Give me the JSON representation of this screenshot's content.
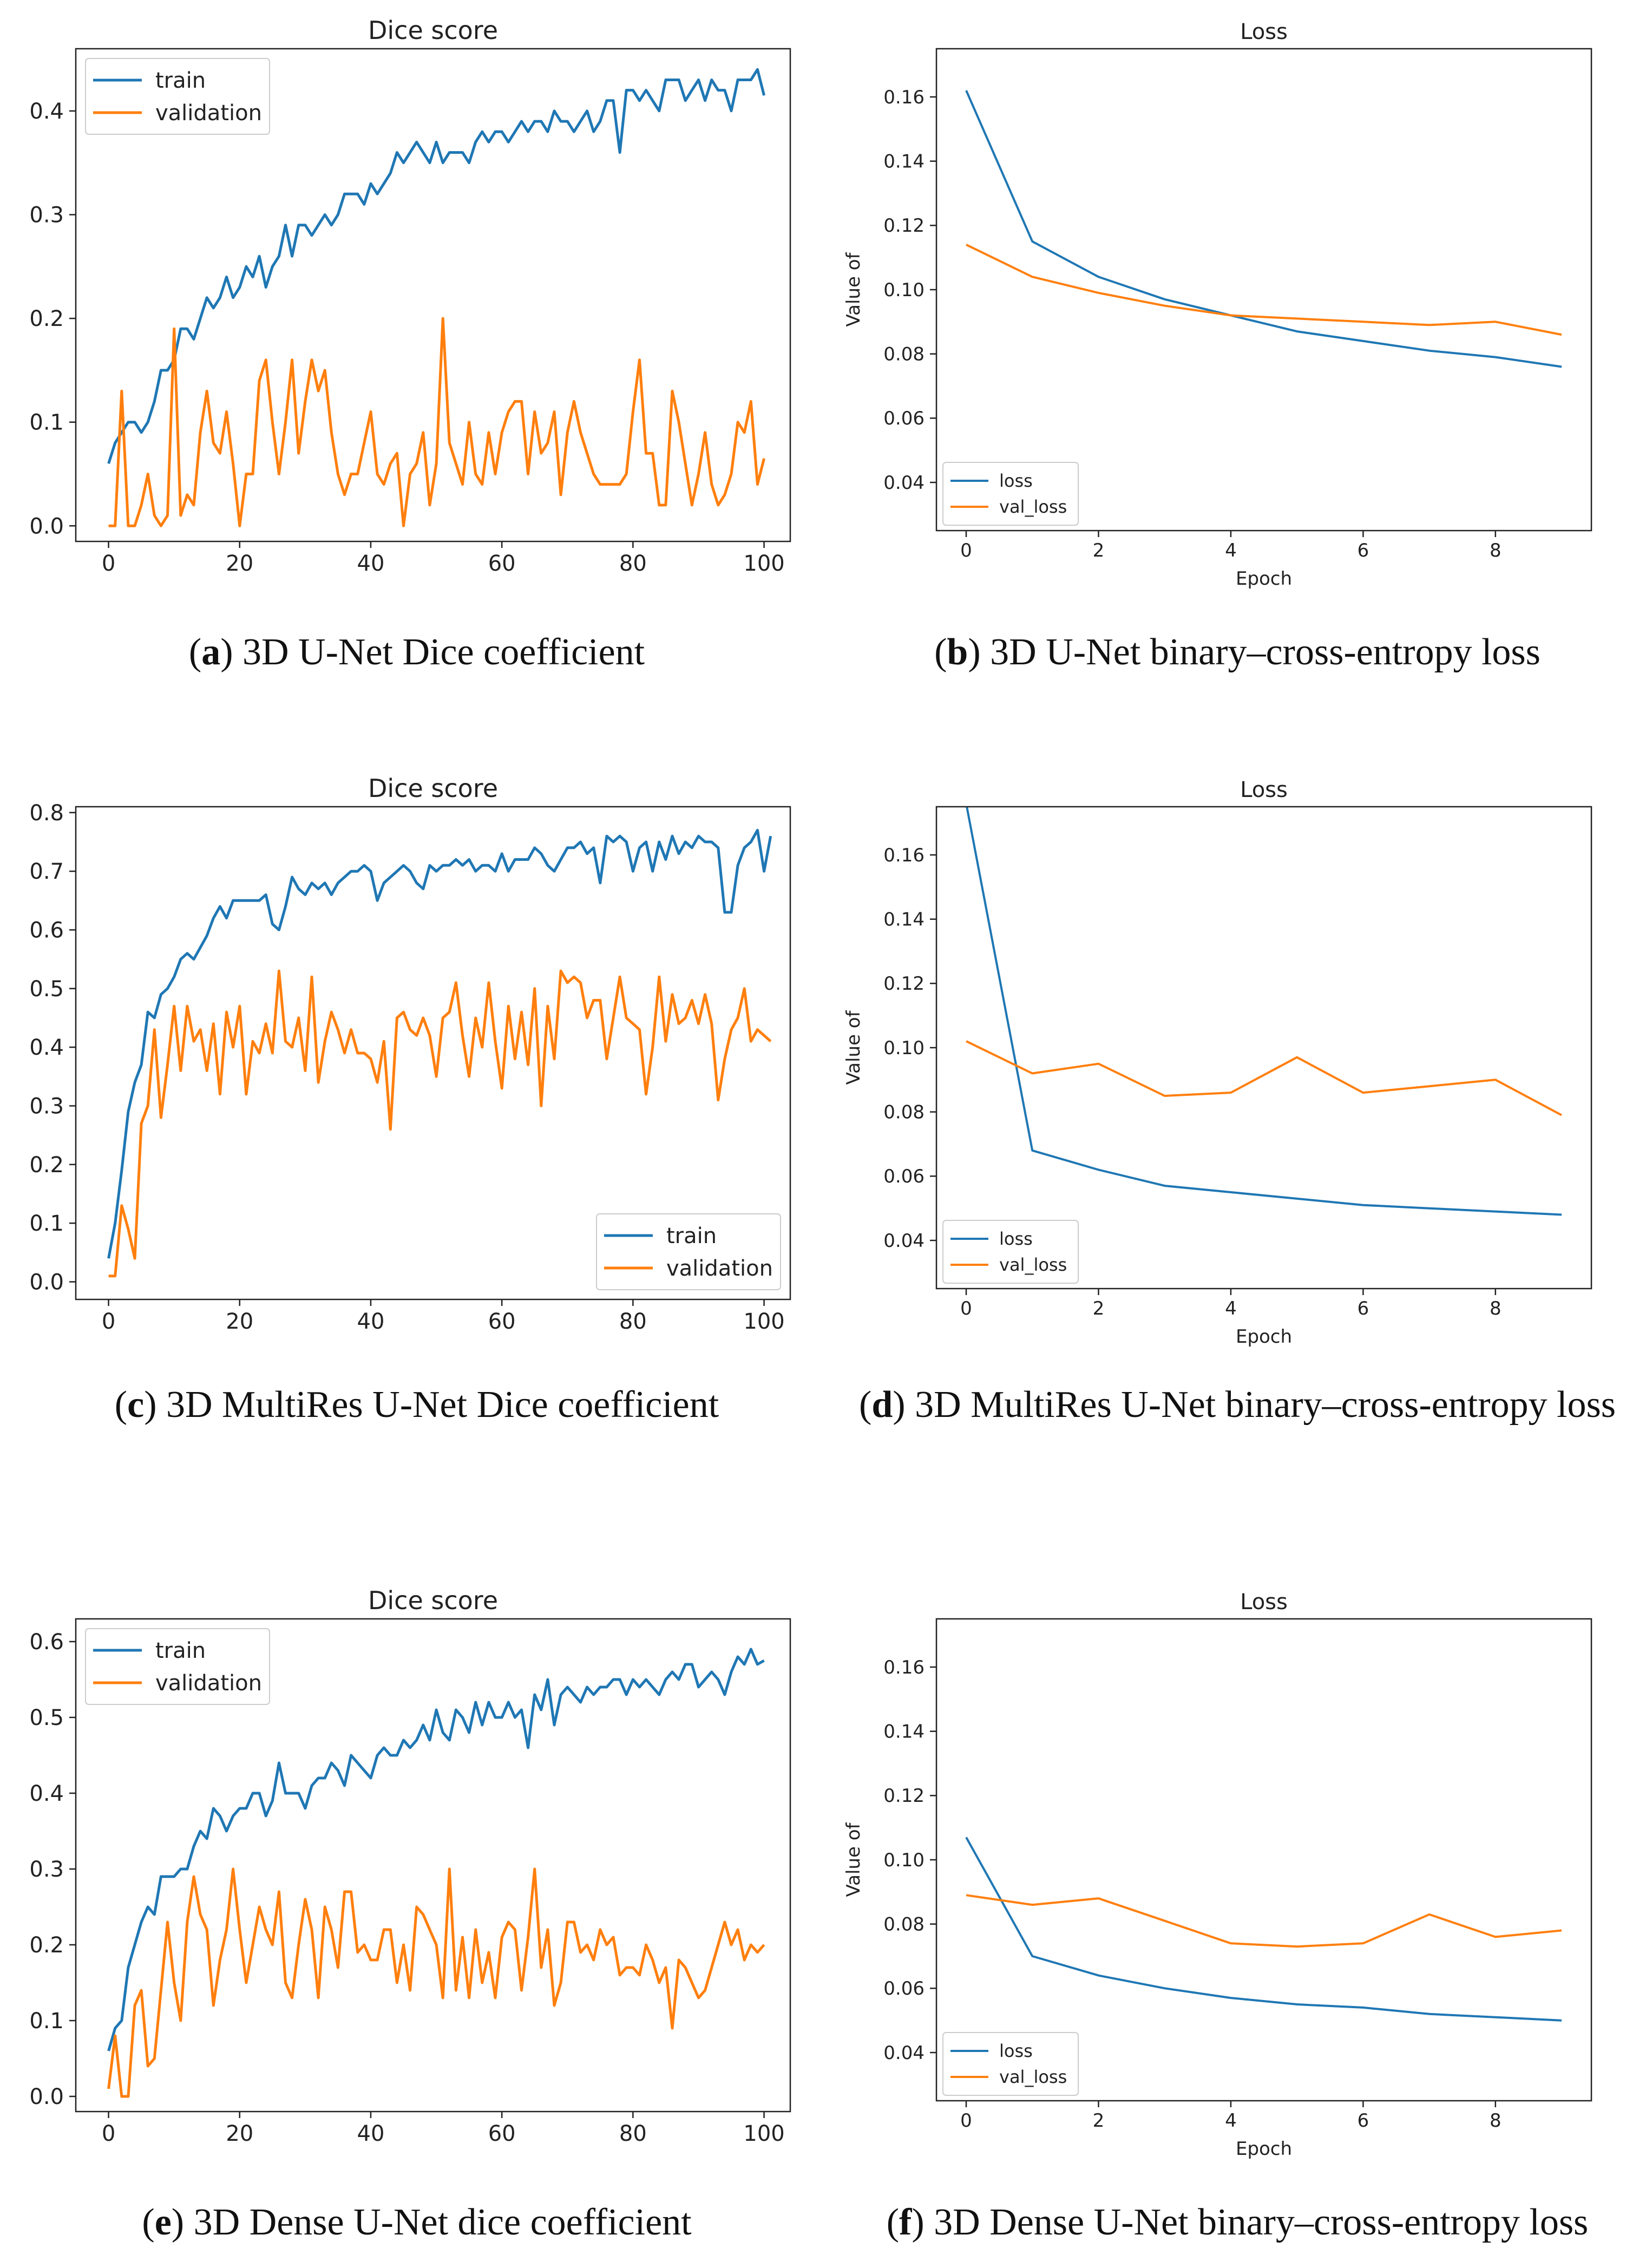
{
  "colors": {
    "blue": "#1f77b4",
    "orange": "#ff7f0e"
  },
  "captions": [
    {
      "letter": "a",
      "text": "3D U-Net Dice coefficient"
    },
    {
      "letter": "b",
      "text": "3D U-Net binary–cross-entropy loss"
    },
    {
      "letter": "c",
      "text": "3D MultiRes U-Net Dice coefficient"
    },
    {
      "letter": "d",
      "text": "3D MultiRes U-Net binary–cross-entropy loss"
    },
    {
      "letter": "e",
      "text": "3D Dense U-Net dice coefficient"
    },
    {
      "letter": "f",
      "text": "3D Dense U-Net binary–cross-entropy loss"
    }
  ],
  "chart_data": [
    {
      "type": "line",
      "title": "Dice score",
      "xlabel": "",
      "ylabel": "",
      "xlim": [
        -5,
        104
      ],
      "ylim": [
        -0.015,
        0.46
      ],
      "xticks": [
        0,
        20,
        40,
        60,
        80,
        100
      ],
      "yticks": [
        0.0,
        0.1,
        0.2,
        0.3,
        0.4
      ],
      "legend_position": "upper-left",
      "series": [
        {
          "name": "train",
          "color": "#1f77b4",
          "values": [
            0.06,
            0.08,
            0.09,
            0.1,
            0.1,
            0.09,
            0.1,
            0.12,
            0.15,
            0.15,
            0.16,
            0.19,
            0.19,
            0.18,
            0.2,
            0.22,
            0.21,
            0.22,
            0.24,
            0.22,
            0.23,
            0.25,
            0.24,
            0.26,
            0.23,
            0.25,
            0.26,
            0.29,
            0.26,
            0.29,
            0.29,
            0.28,
            0.29,
            0.3,
            0.29,
            0.3,
            0.32,
            0.32,
            0.32,
            0.31,
            0.33,
            0.32,
            0.33,
            0.34,
            0.36,
            0.35,
            0.36,
            0.37,
            0.36,
            0.35,
            0.37,
            0.35,
            0.36,
            0.36,
            0.36,
            0.35,
            0.37,
            0.38,
            0.37,
            0.38,
            0.38,
            0.37,
            0.38,
            0.39,
            0.38,
            0.39,
            0.39,
            0.38,
            0.4,
            0.39,
            0.39,
            0.38,
            0.39,
            0.4,
            0.38,
            0.39,
            0.41,
            0.41,
            0.36,
            0.42,
            0.42,
            0.41,
            0.42,
            0.41,
            0.4,
            0.43,
            0.43,
            0.43,
            0.41,
            0.42,
            0.43,
            0.41,
            0.43,
            0.42,
            0.42,
            0.4,
            0.43,
            0.43,
            0.43,
            0.44,
            0.415
          ]
        },
        {
          "name": "validation",
          "color": "#ff7f0e",
          "values": [
            0.0,
            0.0,
            0.13,
            0.0,
            0.0,
            0.02,
            0.05,
            0.01,
            0.0,
            0.01,
            0.19,
            0.01,
            0.03,
            0.02,
            0.09,
            0.13,
            0.08,
            0.07,
            0.11,
            0.06,
            0.0,
            0.05,
            0.05,
            0.14,
            0.16,
            0.1,
            0.05,
            0.1,
            0.16,
            0.07,
            0.12,
            0.16,
            0.13,
            0.15,
            0.09,
            0.05,
            0.03,
            0.05,
            0.05,
            0.08,
            0.11,
            0.05,
            0.04,
            0.06,
            0.07,
            0.0,
            0.05,
            0.06,
            0.09,
            0.02,
            0.06,
            0.2,
            0.08,
            0.06,
            0.04,
            0.1,
            0.05,
            0.04,
            0.09,
            0.05,
            0.09,
            0.11,
            0.12,
            0.12,
            0.05,
            0.11,
            0.07,
            0.08,
            0.11,
            0.03,
            0.09,
            0.12,
            0.09,
            0.07,
            0.05,
            0.04,
            0.04,
            0.04,
            0.04,
            0.05,
            0.11,
            0.16,
            0.07,
            0.07,
            0.02,
            0.02,
            0.13,
            0.1,
            0.06,
            0.02,
            0.05,
            0.09,
            0.04,
            0.02,
            0.03,
            0.05,
            0.1,
            0.09,
            0.12,
            0.04,
            0.065
          ]
        }
      ]
    },
    {
      "type": "line",
      "title": "Loss",
      "xlabel": "Epoch",
      "ylabel": "Value of",
      "xlim": [
        -0.45,
        9.45
      ],
      "ylim": [
        0.025,
        0.175
      ],
      "xticks": [
        0,
        2,
        4,
        6,
        8
      ],
      "yticks": [
        0.04,
        0.06,
        0.08,
        0.1,
        0.12,
        0.14,
        0.16
      ],
      "legend_position": "lower-left",
      "series": [
        {
          "name": "loss",
          "color": "#1f77b4",
          "x": [
            0,
            1,
            2,
            3,
            4,
            5,
            6,
            7,
            8,
            9
          ],
          "values": [
            0.162,
            0.115,
            0.104,
            0.097,
            0.092,
            0.087,
            0.084,
            0.081,
            0.079,
            0.076
          ]
        },
        {
          "name": "val_loss",
          "color": "#ff7f0e",
          "x": [
            0,
            1,
            2,
            3,
            4,
            5,
            6,
            7,
            8,
            9
          ],
          "values": [
            0.114,
            0.104,
            0.099,
            0.095,
            0.092,
            0.091,
            0.09,
            0.089,
            0.09,
            0.086
          ]
        }
      ]
    },
    {
      "type": "line",
      "title": "Dice score",
      "xlabel": "",
      "ylabel": "",
      "xlim": [
        -5,
        104
      ],
      "ylim": [
        -0.03,
        0.81
      ],
      "xticks": [
        0,
        20,
        40,
        60,
        80,
        100
      ],
      "yticks": [
        0.0,
        0.1,
        0.2,
        0.3,
        0.4,
        0.5,
        0.6,
        0.7,
        0.8
      ],
      "legend_position": "lower-right",
      "series": [
        {
          "name": "train",
          "color": "#1f77b4",
          "values": [
            0.04,
            0.1,
            0.19,
            0.29,
            0.34,
            0.37,
            0.46,
            0.45,
            0.49,
            0.5,
            0.52,
            0.55,
            0.56,
            0.55,
            0.57,
            0.59,
            0.62,
            0.64,
            0.62,
            0.65,
            0.65,
            0.65,
            0.65,
            0.65,
            0.66,
            0.61,
            0.6,
            0.64,
            0.69,
            0.67,
            0.66,
            0.68,
            0.67,
            0.68,
            0.66,
            0.68,
            0.69,
            0.7,
            0.7,
            0.71,
            0.7,
            0.65,
            0.68,
            0.69,
            0.7,
            0.71,
            0.7,
            0.68,
            0.67,
            0.71,
            0.7,
            0.71,
            0.71,
            0.72,
            0.71,
            0.72,
            0.7,
            0.71,
            0.71,
            0.7,
            0.73,
            0.7,
            0.72,
            0.72,
            0.72,
            0.74,
            0.73,
            0.71,
            0.7,
            0.72,
            0.74,
            0.74,
            0.75,
            0.73,
            0.74,
            0.68,
            0.76,
            0.75,
            0.76,
            0.75,
            0.7,
            0.74,
            0.75,
            0.7,
            0.75,
            0.72,
            0.76,
            0.73,
            0.75,
            0.74,
            0.76,
            0.75,
            0.75,
            0.74,
            0.63,
            0.63,
            0.71,
            0.74,
            0.75,
            0.77,
            0.7,
            0.76
          ]
        },
        {
          "name": "validation",
          "color": "#ff7f0e",
          "values": [
            0.01,
            0.01,
            0.13,
            0.09,
            0.04,
            0.27,
            0.3,
            0.43,
            0.28,
            0.37,
            0.47,
            0.36,
            0.47,
            0.41,
            0.43,
            0.36,
            0.44,
            0.32,
            0.46,
            0.4,
            0.47,
            0.32,
            0.41,
            0.39,
            0.44,
            0.39,
            0.53,
            0.41,
            0.4,
            0.45,
            0.36,
            0.52,
            0.34,
            0.41,
            0.46,
            0.43,
            0.39,
            0.43,
            0.39,
            0.39,
            0.38,
            0.34,
            0.41,
            0.26,
            0.45,
            0.46,
            0.43,
            0.42,
            0.45,
            0.42,
            0.35,
            0.45,
            0.46,
            0.51,
            0.42,
            0.35,
            0.45,
            0.4,
            0.51,
            0.41,
            0.33,
            0.47,
            0.38,
            0.46,
            0.37,
            0.5,
            0.3,
            0.47,
            0.38,
            0.53,
            0.51,
            0.52,
            0.51,
            0.45,
            0.48,
            0.48,
            0.38,
            0.45,
            0.52,
            0.45,
            0.44,
            0.43,
            0.32,
            0.4,
            0.52,
            0.41,
            0.49,
            0.44,
            0.45,
            0.48,
            0.44,
            0.49,
            0.44,
            0.31,
            0.38,
            0.43,
            0.45,
            0.5,
            0.41,
            0.43,
            0.42,
            0.41
          ]
        }
      ]
    },
    {
      "type": "line",
      "title": "Loss",
      "xlabel": "Epoch",
      "ylabel": "Value of",
      "xlim": [
        -0.45,
        9.45
      ],
      "ylim": [
        0.025,
        0.175
      ],
      "xticks": [
        0,
        2,
        4,
        6,
        8
      ],
      "yticks": [
        0.04,
        0.06,
        0.08,
        0.1,
        0.12,
        0.14,
        0.16
      ],
      "legend_position": "lower-left",
      "series": [
        {
          "name": "loss",
          "color": "#1f77b4",
          "x": [
            0,
            1,
            2,
            3,
            4,
            5,
            6,
            7,
            8,
            9
          ],
          "values": [
            0.176,
            0.068,
            0.062,
            0.057,
            0.055,
            0.053,
            0.051,
            0.05,
            0.049,
            0.048
          ]
        },
        {
          "name": "val_loss",
          "color": "#ff7f0e",
          "x": [
            0,
            1,
            2,
            3,
            4,
            5,
            6,
            7,
            8,
            9
          ],
          "values": [
            0.102,
            0.092,
            0.095,
            0.085,
            0.086,
            0.097,
            0.086,
            0.088,
            0.09,
            0.079
          ]
        }
      ]
    },
    {
      "type": "line",
      "title": "Dice score",
      "xlabel": "",
      "ylabel": "",
      "xlim": [
        -5,
        104
      ],
      "ylim": [
        -0.02,
        0.63
      ],
      "xticks": [
        0,
        20,
        40,
        60,
        80,
        100
      ],
      "yticks": [
        0.0,
        0.1,
        0.2,
        0.3,
        0.4,
        0.5,
        0.6
      ],
      "legend_position": "upper-left",
      "series": [
        {
          "name": "train",
          "color": "#1f77b4",
          "values": [
            0.06,
            0.09,
            0.1,
            0.17,
            0.2,
            0.23,
            0.25,
            0.24,
            0.29,
            0.29,
            0.29,
            0.3,
            0.3,
            0.33,
            0.35,
            0.34,
            0.38,
            0.37,
            0.35,
            0.37,
            0.38,
            0.38,
            0.4,
            0.4,
            0.37,
            0.39,
            0.44,
            0.4,
            0.4,
            0.4,
            0.38,
            0.41,
            0.42,
            0.42,
            0.44,
            0.43,
            0.41,
            0.45,
            0.44,
            0.43,
            0.42,
            0.45,
            0.46,
            0.45,
            0.45,
            0.47,
            0.46,
            0.47,
            0.49,
            0.47,
            0.51,
            0.48,
            0.47,
            0.51,
            0.5,
            0.48,
            0.52,
            0.49,
            0.52,
            0.5,
            0.5,
            0.52,
            0.5,
            0.51,
            0.46,
            0.53,
            0.51,
            0.55,
            0.49,
            0.53,
            0.54,
            0.53,
            0.52,
            0.54,
            0.53,
            0.54,
            0.54,
            0.55,
            0.55,
            0.53,
            0.55,
            0.54,
            0.55,
            0.54,
            0.53,
            0.55,
            0.56,
            0.55,
            0.57,
            0.57,
            0.54,
            0.55,
            0.56,
            0.55,
            0.53,
            0.56,
            0.58,
            0.57,
            0.59,
            0.57,
            0.575
          ]
        },
        {
          "name": "validation",
          "color": "#ff7f0e",
          "values": [
            0.01,
            0.08,
            0.0,
            0.0,
            0.12,
            0.14,
            0.04,
            0.05,
            0.14,
            0.23,
            0.15,
            0.1,
            0.23,
            0.29,
            0.24,
            0.22,
            0.12,
            0.18,
            0.22,
            0.3,
            0.22,
            0.15,
            0.2,
            0.25,
            0.22,
            0.2,
            0.27,
            0.15,
            0.13,
            0.2,
            0.26,
            0.22,
            0.13,
            0.25,
            0.22,
            0.17,
            0.27,
            0.27,
            0.19,
            0.2,
            0.18,
            0.18,
            0.22,
            0.22,
            0.15,
            0.2,
            0.14,
            0.25,
            0.24,
            0.22,
            0.2,
            0.13,
            0.3,
            0.14,
            0.21,
            0.13,
            0.22,
            0.15,
            0.19,
            0.13,
            0.21,
            0.23,
            0.22,
            0.14,
            0.21,
            0.3,
            0.17,
            0.22,
            0.12,
            0.15,
            0.23,
            0.23,
            0.19,
            0.2,
            0.18,
            0.22,
            0.2,
            0.21,
            0.16,
            0.17,
            0.17,
            0.16,
            0.2,
            0.18,
            0.15,
            0.17,
            0.09,
            0.18,
            0.17,
            0.15,
            0.13,
            0.14,
            0.17,
            0.2,
            0.23,
            0.2,
            0.22,
            0.18,
            0.2,
            0.19,
            0.2
          ]
        }
      ]
    },
    {
      "type": "line",
      "title": "Loss",
      "xlabel": "Epoch",
      "ylabel": "Value of",
      "xlim": [
        -0.45,
        9.45
      ],
      "ylim": [
        0.025,
        0.175
      ],
      "xticks": [
        0,
        2,
        4,
        6,
        8
      ],
      "yticks": [
        0.04,
        0.06,
        0.08,
        0.1,
        0.12,
        0.14,
        0.16
      ],
      "legend_position": "lower-left",
      "series": [
        {
          "name": "loss",
          "color": "#1f77b4",
          "x": [
            0,
            1,
            2,
            3,
            4,
            5,
            6,
            7,
            8,
            9
          ],
          "values": [
            0.107,
            0.07,
            0.064,
            0.06,
            0.057,
            0.055,
            0.054,
            0.052,
            0.051,
            0.05
          ]
        },
        {
          "name": "val_loss",
          "color": "#ff7f0e",
          "x": [
            0,
            1,
            2,
            3,
            4,
            5,
            6,
            7,
            8,
            9
          ],
          "values": [
            0.089,
            0.086,
            0.088,
            0.081,
            0.074,
            0.073,
            0.074,
            0.083,
            0.076,
            0.078
          ]
        }
      ]
    }
  ]
}
